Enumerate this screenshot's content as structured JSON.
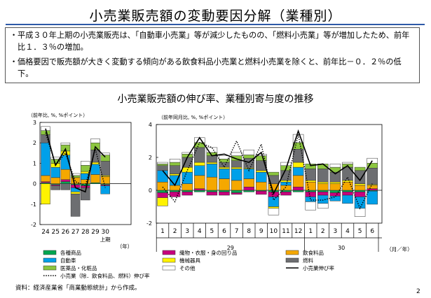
{
  "slide": {
    "title": "小売業販売額の変動要因分解（業種別）",
    "bullets": [
      "平成３０年上期の小売業販売は、「自動車小売業」等が減少したものの、「燃料小売業」等が増加したため、前年比１．３％の増加。",
      "価格要因で販売額が大きく変動する傾向がある飲食料品小売業と燃料小売業を除くと、前年比－０．２％の低下。"
    ],
    "bullet_mark": "・",
    "chart_title": "小売業販売額の伸び率、業種別寄与度の推移",
    "source": "資料：経済産業省「商業動態統計」から作成。",
    "page_number": "2"
  },
  "legend": [
    {
      "key": "general",
      "label": "各種商品",
      "color": "#00a651",
      "kind": "box"
    },
    {
      "key": "textile",
      "label": "織物・衣服・身の回り品",
      "color": "#c8007d",
      "kind": "box"
    },
    {
      "key": "food",
      "label": "飲食料品",
      "color": "#f5a800",
      "kind": "box"
    },
    {
      "key": "auto",
      "label": "自動車",
      "color": "#00a0e9",
      "kind": "box"
    },
    {
      "key": "machinery",
      "label": "機械器具",
      "color": "#fff200",
      "kind": "box"
    },
    {
      "key": "fuel",
      "label": "燃料",
      "color": "#6d6e71",
      "kind": "box"
    },
    {
      "key": "drug",
      "label": "医薬品・化粧品",
      "color": "#8cc63f",
      "kind": "box"
    },
    {
      "key": "other",
      "label": "その他",
      "color": "#ffffff",
      "kind": "box"
    },
    {
      "key": "excl",
      "label": "小売業（除．飲食料品、燃料）伸び率",
      "color": "#000000",
      "kind": "dotted"
    },
    {
      "key": "total",
      "label": "小売業伸び率",
      "color": "#000000",
      "kind": "solid"
    }
  ],
  "chart_data": [
    {
      "type": "bar",
      "stacked": true,
      "unit_label": "（前年比, %, %ポイント）",
      "ylim": [
        -2,
        3
      ],
      "yticks": [
        -2,
        -1,
        0,
        1,
        2,
        3
      ],
      "categories": [
        "24",
        "25",
        "26",
        "27",
        "28",
        "29",
        "30"
      ],
      "x_suffix": "上期",
      "x_unit": "（年）",
      "series": [
        {
          "key": "general",
          "values": [
            0.05,
            -0.05,
            0.1,
            -0.05,
            -0.1,
            0.05,
            -0.05
          ]
        },
        {
          "key": "textile",
          "values": [
            0.05,
            -0.05,
            0.1,
            -0.15,
            -0.1,
            0.0,
            -0.05
          ]
        },
        {
          "key": "food",
          "values": [
            0.3,
            0.3,
            0.5,
            0.3,
            0.2,
            0.4,
            0.35
          ]
        },
        {
          "key": "auto",
          "values": [
            1.6,
            0.5,
            0.7,
            -0.2,
            0.3,
            0.5,
            -0.4
          ]
        },
        {
          "key": "machinery",
          "values": [
            -1.0,
            0.2,
            0.2,
            -0.1,
            0.1,
            0.1,
            0.05
          ]
        },
        {
          "key": "fuel",
          "values": [
            0.4,
            -0.2,
            -0.3,
            -1.1,
            -0.6,
            0.6,
            0.7
          ]
        },
        {
          "key": "drug",
          "values": [
            0.2,
            0.2,
            0.3,
            0.1,
            0.3,
            0.35,
            0.3
          ]
        },
        {
          "key": "other",
          "values": [
            0.2,
            0.1,
            0.1,
            0.1,
            0.2,
            0.2,
            0.1
          ]
        }
      ],
      "lines": {
        "total": [
          2.7,
          0.9,
          1.7,
          -0.2,
          -0.4,
          1.8,
          1.3
        ],
        "excl": [
          2.5,
          0.9,
          1.5,
          0.1,
          -0.1,
          1.7,
          -0.2
        ]
      }
    },
    {
      "type": "bar",
      "stacked": true,
      "unit_label": "（前年同月比, %, %ポイント）",
      "ylim": [
        -2,
        4
      ],
      "yticks": [
        -2,
        0,
        2,
        4
      ],
      "categories": [
        "1",
        "2",
        "3",
        "4",
        "5",
        "6",
        "7",
        "8",
        "9",
        "10",
        "11",
        "12",
        "1",
        "2",
        "3",
        "4",
        "5",
        "6"
      ],
      "year_groups": [
        {
          "label": "29",
          "start": 0,
          "end": 11
        },
        {
          "label": "30",
          "start": 12,
          "end": 17
        }
      ],
      "x_unit": "（月／年）",
      "series": [
        {
          "key": "general",
          "values": [
            -0.15,
            -0.1,
            -0.1,
            -0.1,
            -0.1,
            -0.1,
            -0.15,
            -0.1,
            -0.05,
            -0.1,
            -0.1,
            -0.1,
            -0.1,
            -0.1,
            -0.15,
            -0.1,
            -0.1,
            -0.05
          ]
        },
        {
          "key": "textile",
          "values": [
            -0.3,
            -0.3,
            -0.2,
            0.1,
            -0.2,
            -0.2,
            -0.1,
            0.2,
            -0.2,
            -0.3,
            -0.2,
            0.2,
            -0.3,
            -0.2,
            -0.2,
            -0.2,
            -0.3,
            0.1
          ]
        },
        {
          "key": "food",
          "values": [
            0.5,
            0.3,
            0.4,
            0.8,
            0.8,
            0.7,
            0.6,
            0.5,
            0.5,
            0.4,
            0.3,
            0.7,
            0.5,
            0.4,
            0.4,
            0.5,
            0.3,
            0.2
          ]
        },
        {
          "key": "auto",
          "values": [
            0.7,
            0.6,
            0.7,
            0.6,
            0.8,
            0.6,
            0.7,
            0.6,
            0.6,
            -0.6,
            0.2,
            0.5,
            -0.3,
            -0.5,
            -0.3,
            -0.5,
            -0.7,
            -0.8
          ]
        },
        {
          "key": "machinery",
          "values": [
            -0.5,
            0.1,
            0.3,
            0.2,
            0.1,
            0.1,
            0.1,
            0.05,
            0.1,
            -0.1,
            0.1,
            0.3,
            0.1,
            0.1,
            0.1,
            0.1,
            0.1,
            0.05
          ]
        },
        {
          "key": "fuel",
          "values": [
            0.3,
            0.5,
            0.6,
            0.9,
            0.4,
            0.3,
            0.4,
            0.6,
            0.6,
            0.5,
            0.6,
            0.8,
            0.7,
            0.8,
            0.6,
            0.8,
            0.8,
            1.0
          ]
        },
        {
          "key": "drug",
          "values": [
            0.1,
            0.2,
            0.2,
            0.3,
            0.2,
            0.2,
            0.3,
            0.2,
            0.3,
            0.2,
            0.3,
            0.4,
            0.3,
            0.3,
            0.3,
            0.2,
            0.2,
            0.3
          ]
        },
        {
          "key": "other",
          "values": [
            0.1,
            0.2,
            0.1,
            0.3,
            0.3,
            0.2,
            0.2,
            0.3,
            0.1,
            -0.4,
            0.2,
            0.5,
            -0.5,
            -0.3,
            0.2,
            0.1,
            -0.5,
            0.3
          ]
        }
      ],
      "lines": {
        "total": [
          1.2,
          0.3,
          2.0,
          3.2,
          2.1,
          2.2,
          1.9,
          1.7,
          2.3,
          -0.2,
          1.3,
          3.6,
          1.5,
          1.6,
          1.0,
          1.5,
          0.6,
          1.8
        ],
        "excl": [
          0.2,
          -0.7,
          1.2,
          2.9,
          2.6,
          1.4,
          3.0,
          1.2,
          2.8,
          -0.6,
          0.2,
          3.4,
          -0.6,
          -0.6,
          -0.4,
          0.8,
          -1.1,
          0.4
        ]
      }
    }
  ]
}
